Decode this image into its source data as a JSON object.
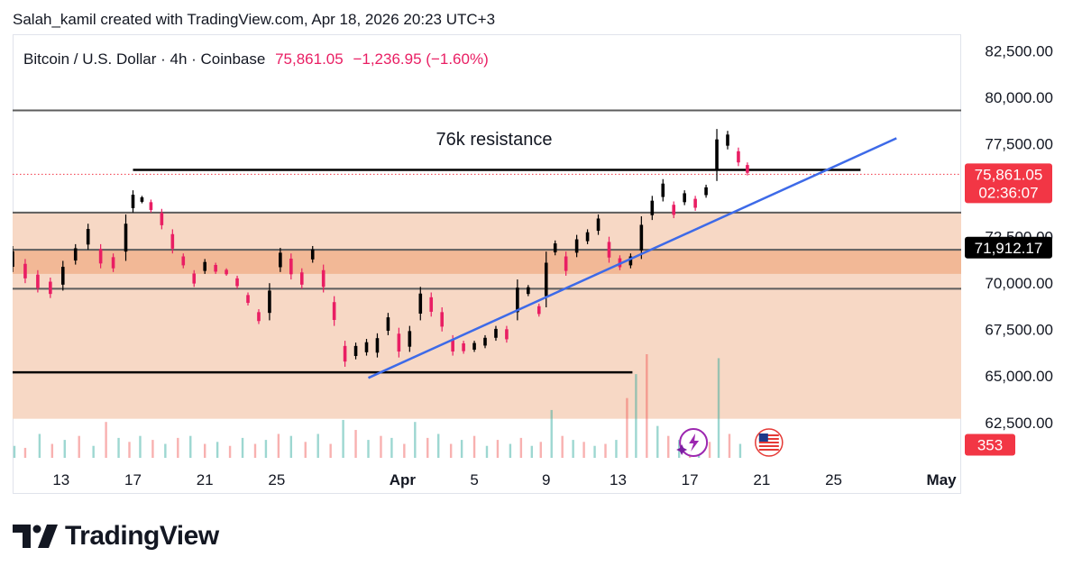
{
  "header": {
    "text": "Salah_kamil created with TradingView.com, Apr 18, 2026 20:23 UTC+3"
  },
  "legend": {
    "symbol": "Bitcoin / U.S. Dollar · 4h · Coinbase",
    "price": "75,861.05",
    "change": "−1,236.95 (−1.60%)"
  },
  "annotation": {
    "text": "76k resistance"
  },
  "brand": {
    "name": "TradingView"
  },
  "colors": {
    "up": "#26a69a",
    "down": "#ef5350",
    "candle_up": "#000000",
    "candle_down": "#e91e63",
    "trendline": "#3d6ae8",
    "zone": "#f7d8c5",
    "zone_dark": "#f2b896"
  },
  "chart_data": {
    "type": "candlestick",
    "symbol": "BTC/USD",
    "interval": "4h",
    "y_axis": {
      "ticks": [
        "82,500.00",
        "80,000.00",
        "77,500.00",
        "72,500.00",
        "70,000.00",
        "67,500.00",
        "65,000.00",
        "62,500.00"
      ],
      "tick_values": [
        82500,
        80000,
        77500,
        72500,
        70000,
        67500,
        65000,
        62500
      ],
      "range": [
        60500,
        83400
      ]
    },
    "x_axis": {
      "ticks": [
        "13",
        "17",
        "21",
        "25",
        "Apr",
        "5",
        "9",
        "13",
        "17",
        "21",
        "25",
        "May"
      ],
      "tick_days": [
        -19,
        -15,
        -11,
        -7,
        0,
        4,
        8,
        12,
        16,
        20,
        24,
        30
      ],
      "range": [
        -21.7,
        31.1
      ]
    },
    "badges": [
      {
        "label": "75,861.05",
        "sublabel": "02:36:07",
        "value": 75861,
        "color": "#f23645"
      },
      {
        "label": "71,912.17",
        "value": 71912,
        "color": "#000000"
      },
      {
        "label": "353",
        "value": 61300,
        "color": "#f23645"
      }
    ],
    "horizontal_lines": [
      {
        "value": 79300,
        "color": "#5d5d5d"
      },
      {
        "value": 76100,
        "color": "#000000",
        "from": -15,
        "to": 25.5
      },
      {
        "value": 73800,
        "color": "#5d5d5d"
      },
      {
        "value": 71800,
        "color": "#5d5d5d"
      },
      {
        "value": 69700,
        "color": "#5d5d5d"
      },
      {
        "value": 65200,
        "color": "#000000",
        "from": -21.7,
        "to": 12.8
      }
    ],
    "price_line": {
      "value": 75861,
      "color": "#f23645"
    },
    "zones": [
      {
        "from": 62700,
        "to": 73800,
        "color": "#f7d8c5"
      },
      {
        "from": 70500,
        "to": 71800,
        "color": "#f2b896"
      }
    ],
    "trendline": {
      "points": [
        [
          -1.9,
          64900
        ],
        [
          27.5,
          77800
        ]
      ]
    },
    "candles": [
      [
        -21.7,
        70600,
        72000
      ],
      [
        -21,
        70000,
        71300
      ],
      [
        -20.3,
        69500,
        70700
      ],
      [
        -19.6,
        69200,
        70300
      ],
      [
        -18.9,
        69600,
        71200
      ],
      [
        -18.2,
        71000,
        72100
      ],
      [
        -17.5,
        71800,
        73200
      ],
      [
        -16.8,
        70800,
        72100
      ],
      [
        -16.1,
        70600,
        71600
      ],
      [
        -15.4,
        71200,
        73700
      ],
      [
        -15,
        73800,
        75000
      ],
      [
        -14.5,
        74300,
        74700
      ],
      [
        -14,
        73800,
        74500
      ],
      [
        -13.4,
        72900,
        74000
      ],
      [
        -12.8,
        71600,
        72900
      ],
      [
        -12.2,
        70800,
        71600
      ],
      [
        -11.6,
        69800,
        70700
      ],
      [
        -11,
        70500,
        71300
      ],
      [
        -10.4,
        70500,
        71100
      ],
      [
        -9.8,
        70400,
        70800
      ],
      [
        -9.2,
        69700,
        70400
      ],
      [
        -8.6,
        68800,
        69500
      ],
      [
        -8,
        67800,
        68600
      ],
      [
        -7.4,
        68000,
        70000
      ],
      [
        -6.8,
        70600,
        71900
      ],
      [
        -6.2,
        70200,
        71600
      ],
      [
        -5.6,
        69700,
        70800
      ],
      [
        -5,
        71100,
        72000
      ],
      [
        -4.4,
        69500,
        71000
      ],
      [
        -3.8,
        67700,
        69300
      ],
      [
        -3.2,
        65500,
        66900
      ],
      [
        -2.6,
        65900,
        66800
      ],
      [
        -2,
        66100,
        67000
      ],
      [
        -1.4,
        66000,
        67300
      ],
      [
        -0.8,
        67200,
        68400
      ],
      [
        -0.2,
        66000,
        67600
      ],
      [
        0.4,
        66300,
        67700
      ],
      [
        1,
        68000,
        69800
      ],
      [
        1.6,
        68200,
        69500
      ],
      [
        2.2,
        67400,
        68700
      ],
      [
        2.8,
        66100,
        67200
      ],
      [
        3.4,
        66200,
        66900
      ],
      [
        4,
        66300,
        66900
      ],
      [
        4.6,
        66500,
        67200
      ],
      [
        5.2,
        66900,
        67700
      ],
      [
        5.8,
        66800,
        67700
      ],
      [
        6.4,
        68000,
        70200
      ],
      [
        7,
        69300,
        69900
      ],
      [
        7.6,
        68200,
        68900
      ],
      [
        8,
        68700,
        71700
      ],
      [
        8.5,
        71500,
        72300
      ],
      [
        9.1,
        70400,
        71700
      ],
      [
        9.7,
        71400,
        72600
      ],
      [
        10.3,
        72100,
        72900
      ],
      [
        10.9,
        72600,
        73700
      ],
      [
        11.5,
        71100,
        72500
      ],
      [
        12.1,
        70700,
        71500
      ],
      [
        12.7,
        70800,
        71600
      ],
      [
        13.3,
        71300,
        73600
      ],
      [
        13.9,
        73400,
        74700
      ],
      [
        14.5,
        74400,
        75600
      ],
      [
        15.1,
        73500,
        74400
      ],
      [
        15.7,
        74200,
        75000
      ],
      [
        16.3,
        73900,
        74700
      ],
      [
        16.9,
        74600,
        75300
      ],
      [
        17.5,
        75500,
        78300
      ],
      [
        18.1,
        77200,
        78200
      ],
      [
        18.7,
        76300,
        77300
      ],
      [
        19.2,
        75800,
        76500
      ]
    ],
    "volume": {
      "bars": [
        [
          -21.6,
          0.3
        ],
        [
          -21,
          0.25
        ],
        [
          -20.2,
          0.6
        ],
        [
          -19.5,
          0.35
        ],
        [
          -18.8,
          0.45
        ],
        [
          -18,
          0.55
        ],
        [
          -17.2,
          0.3
        ],
        [
          -16.5,
          0.9
        ],
        [
          -15.8,
          0.5
        ],
        [
          -15.2,
          0.4
        ],
        [
          -14.6,
          0.55
        ],
        [
          -13.9,
          0.45
        ],
        [
          -13.2,
          0.35
        ],
        [
          -12.5,
          0.5
        ],
        [
          -11.8,
          0.55
        ],
        [
          -11,
          0.35
        ],
        [
          -10.3,
          0.4
        ],
        [
          -9.6,
          0.3
        ],
        [
          -8.9,
          0.5
        ],
        [
          -8.2,
          0.35
        ],
        [
          -7.6,
          0.45
        ],
        [
          -6.9,
          0.6
        ],
        [
          -6.2,
          0.55
        ],
        [
          -5.4,
          0.4
        ],
        [
          -4.7,
          0.6
        ],
        [
          -4,
          0.35
        ],
        [
          -3.3,
          0.95
        ],
        [
          -2.6,
          0.7
        ],
        [
          -1.9,
          0.45
        ],
        [
          -1.2,
          0.55
        ],
        [
          -0.6,
          0.5
        ],
        [
          0.1,
          0.35
        ],
        [
          0.7,
          0.9
        ],
        [
          1.4,
          0.5
        ],
        [
          2,
          0.6
        ],
        [
          2.7,
          0.35
        ],
        [
          3.3,
          0.45
        ],
        [
          4,
          0.55
        ],
        [
          4.7,
          0.3
        ],
        [
          5.3,
          0.45
        ],
        [
          6,
          0.35
        ],
        [
          6.6,
          0.5
        ],
        [
          7.2,
          0.3
        ],
        [
          7.7,
          0.4
        ],
        [
          8.3,
          1.2
        ],
        [
          8.9,
          0.55
        ],
        [
          9.5,
          0.45
        ],
        [
          10.1,
          0.4
        ],
        [
          10.7,
          0.3
        ],
        [
          11.3,
          0.35
        ],
        [
          11.9,
          0.45
        ],
        [
          12.5,
          1.5
        ],
        [
          13,
          2.1
        ],
        [
          13.6,
          2.6
        ],
        [
          14.2,
          0.8
        ],
        [
          14.8,
          0.55
        ],
        [
          15.4,
          0.45
        ],
        [
          16,
          0.35
        ],
        [
          16.5,
          0.5
        ],
        [
          17.1,
          0.4
        ],
        [
          17.6,
          2.5
        ],
        [
          18.2,
          0.6
        ],
        [
          18.8,
          0.35
        ]
      ],
      "max": 2.6
    },
    "icons": [
      {
        "name": "sparkle-lightning-icon",
        "day": 16.2
      },
      {
        "name": "us-flag-icon",
        "day": 20.4
      }
    ]
  }
}
